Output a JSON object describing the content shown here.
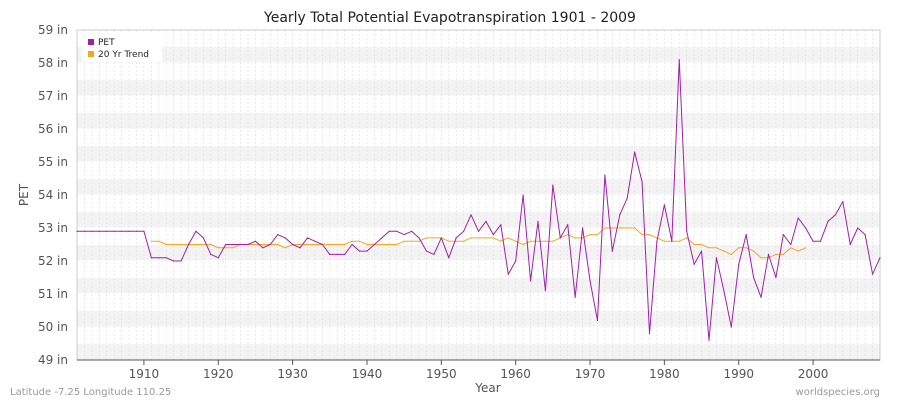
{
  "chart_data": {
    "type": "line",
    "title": "Yearly Total Potential Evapotranspiration 1901 - 2009",
    "xlabel": "Year",
    "ylabel": "PET",
    "xlim": [
      1901,
      2009
    ],
    "ylim": [
      49,
      59
    ],
    "x_ticks": [
      1910,
      1920,
      1930,
      1940,
      1950,
      1960,
      1970,
      1980,
      1990,
      2000
    ],
    "y_ticks": [
      {
        "value": 49,
        "label": "49 in"
      },
      {
        "value": 50,
        "label": "50 in"
      },
      {
        "value": 51,
        "label": "51 in"
      },
      {
        "value": 52,
        "label": "52 in"
      },
      {
        "value": 53,
        "label": "53 in"
      },
      {
        "value": 54,
        "label": "54 in"
      },
      {
        "value": 55,
        "label": "55 in"
      },
      {
        "value": 56,
        "label": "56 in"
      },
      {
        "value": 57,
        "label": "57 in"
      },
      {
        "value": 58,
        "label": "58 in"
      },
      {
        "value": 59,
        "label": "59 in"
      }
    ],
    "grid": true,
    "legend_position": "top-left",
    "series": [
      {
        "name": "PET",
        "color": "#a020a8",
        "x": [
          1901,
          1902,
          1903,
          1904,
          1905,
          1906,
          1907,
          1908,
          1909,
          1910,
          1911,
          1912,
          1913,
          1914,
          1915,
          1916,
          1917,
          1918,
          1919,
          1920,
          1921,
          1922,
          1923,
          1924,
          1925,
          1926,
          1927,
          1928,
          1929,
          1930,
          1931,
          1932,
          1933,
          1934,
          1935,
          1936,
          1937,
          1938,
          1939,
          1940,
          1941,
          1942,
          1943,
          1944,
          1945,
          1946,
          1947,
          1948,
          1949,
          1950,
          1951,
          1952,
          1953,
          1954,
          1955,
          1956,
          1957,
          1958,
          1959,
          1960,
          1961,
          1962,
          1963,
          1964,
          1965,
          1966,
          1967,
          1968,
          1969,
          1970,
          1971,
          1972,
          1973,
          1974,
          1975,
          1976,
          1977,
          1978,
          1979,
          1980,
          1981,
          1982,
          1983,
          1984,
          1985,
          1986,
          1987,
          1988,
          1989,
          1990,
          1991,
          1992,
          1993,
          1994,
          1995,
          1996,
          1997,
          1998,
          1999,
          2000,
          2001,
          2002,
          2003,
          2004,
          2005,
          2006,
          2007,
          2008,
          2009
        ],
        "values": [
          52.9,
          52.9,
          52.9,
          52.9,
          52.9,
          52.9,
          52.9,
          52.9,
          52.9,
          52.9,
          52.1,
          52.1,
          52.1,
          52.0,
          52.0,
          52.5,
          52.9,
          52.7,
          52.2,
          52.1,
          52.5,
          52.5,
          52.5,
          52.5,
          52.6,
          52.4,
          52.5,
          52.8,
          52.7,
          52.5,
          52.4,
          52.7,
          52.6,
          52.5,
          52.2,
          52.2,
          52.2,
          52.5,
          52.3,
          52.3,
          52.5,
          52.7,
          52.9,
          52.9,
          52.8,
          52.9,
          52.7,
          52.3,
          52.2,
          52.7,
          52.1,
          52.7,
          52.9,
          53.4,
          52.9,
          53.2,
          52.8,
          53.1,
          51.6,
          52.0,
          54.0,
          51.4,
          53.2,
          51.1,
          54.3,
          52.7,
          53.1,
          50.9,
          53.0,
          51.4,
          50.2,
          54.6,
          52.3,
          53.4,
          53.9,
          55.3,
          54.4,
          49.8,
          52.6,
          53.7,
          52.6,
          58.1,
          52.9,
          51.9,
          52.3,
          49.6,
          52.1,
          51.1,
          50.0,
          51.9,
          52.8,
          51.5,
          50.9,
          52.2,
          51.5,
          52.8,
          52.5,
          53.3,
          53.0,
          52.6,
          52.6,
          53.2,
          53.4,
          53.8,
          52.5,
          53.0,
          52.8,
          51.6,
          52.1
        ]
      },
      {
        "name": "20 Yr Trend",
        "color": "#f5a623",
        "x": [
          1911,
          1912,
          1913,
          1914,
          1915,
          1916,
          1917,
          1918,
          1919,
          1920,
          1921,
          1922,
          1923,
          1924,
          1925,
          1926,
          1927,
          1928,
          1929,
          1930,
          1931,
          1932,
          1933,
          1934,
          1935,
          1936,
          1937,
          1938,
          1939,
          1940,
          1941,
          1942,
          1943,
          1944,
          1945,
          1946,
          1947,
          1948,
          1949,
          1950,
          1951,
          1952,
          1953,
          1954,
          1955,
          1956,
          1957,
          1958,
          1959,
          1960,
          1961,
          1962,
          1963,
          1964,
          1965,
          1966,
          1967,
          1968,
          1969,
          1970,
          1971,
          1972,
          1973,
          1974,
          1975,
          1976,
          1977,
          1978,
          1979,
          1980,
          1981,
          1982,
          1983,
          1984,
          1985,
          1986,
          1987,
          1988,
          1989,
          1990,
          1991,
          1992,
          1993,
          1994,
          1995,
          1996,
          1997,
          1998,
          1999
        ],
        "values": [
          52.6,
          52.6,
          52.5,
          52.5,
          52.5,
          52.5,
          52.5,
          52.5,
          52.5,
          52.4,
          52.4,
          52.4,
          52.5,
          52.5,
          52.5,
          52.5,
          52.5,
          52.5,
          52.4,
          52.5,
          52.5,
          52.5,
          52.5,
          52.5,
          52.5,
          52.5,
          52.5,
          52.6,
          52.6,
          52.5,
          52.5,
          52.5,
          52.5,
          52.5,
          52.6,
          52.6,
          52.6,
          52.7,
          52.7,
          52.7,
          52.6,
          52.6,
          52.6,
          52.7,
          52.7,
          52.7,
          52.7,
          52.6,
          52.7,
          52.6,
          52.5,
          52.6,
          52.6,
          52.6,
          52.6,
          52.7,
          52.8,
          52.7,
          52.7,
          52.8,
          52.8,
          53.0,
          53.0,
          53.0,
          53.0,
          53.0,
          52.8,
          52.8,
          52.7,
          52.6,
          52.6,
          52.6,
          52.7,
          52.5,
          52.5,
          52.4,
          52.4,
          52.3,
          52.2,
          52.4,
          52.4,
          52.3,
          52.1,
          52.1,
          52.2,
          52.2,
          52.4,
          52.3,
          52.4
        ]
      }
    ]
  },
  "footer": {
    "left": "Latitude -7.25 Longitude 110.25",
    "right": "worldspecies.org"
  }
}
